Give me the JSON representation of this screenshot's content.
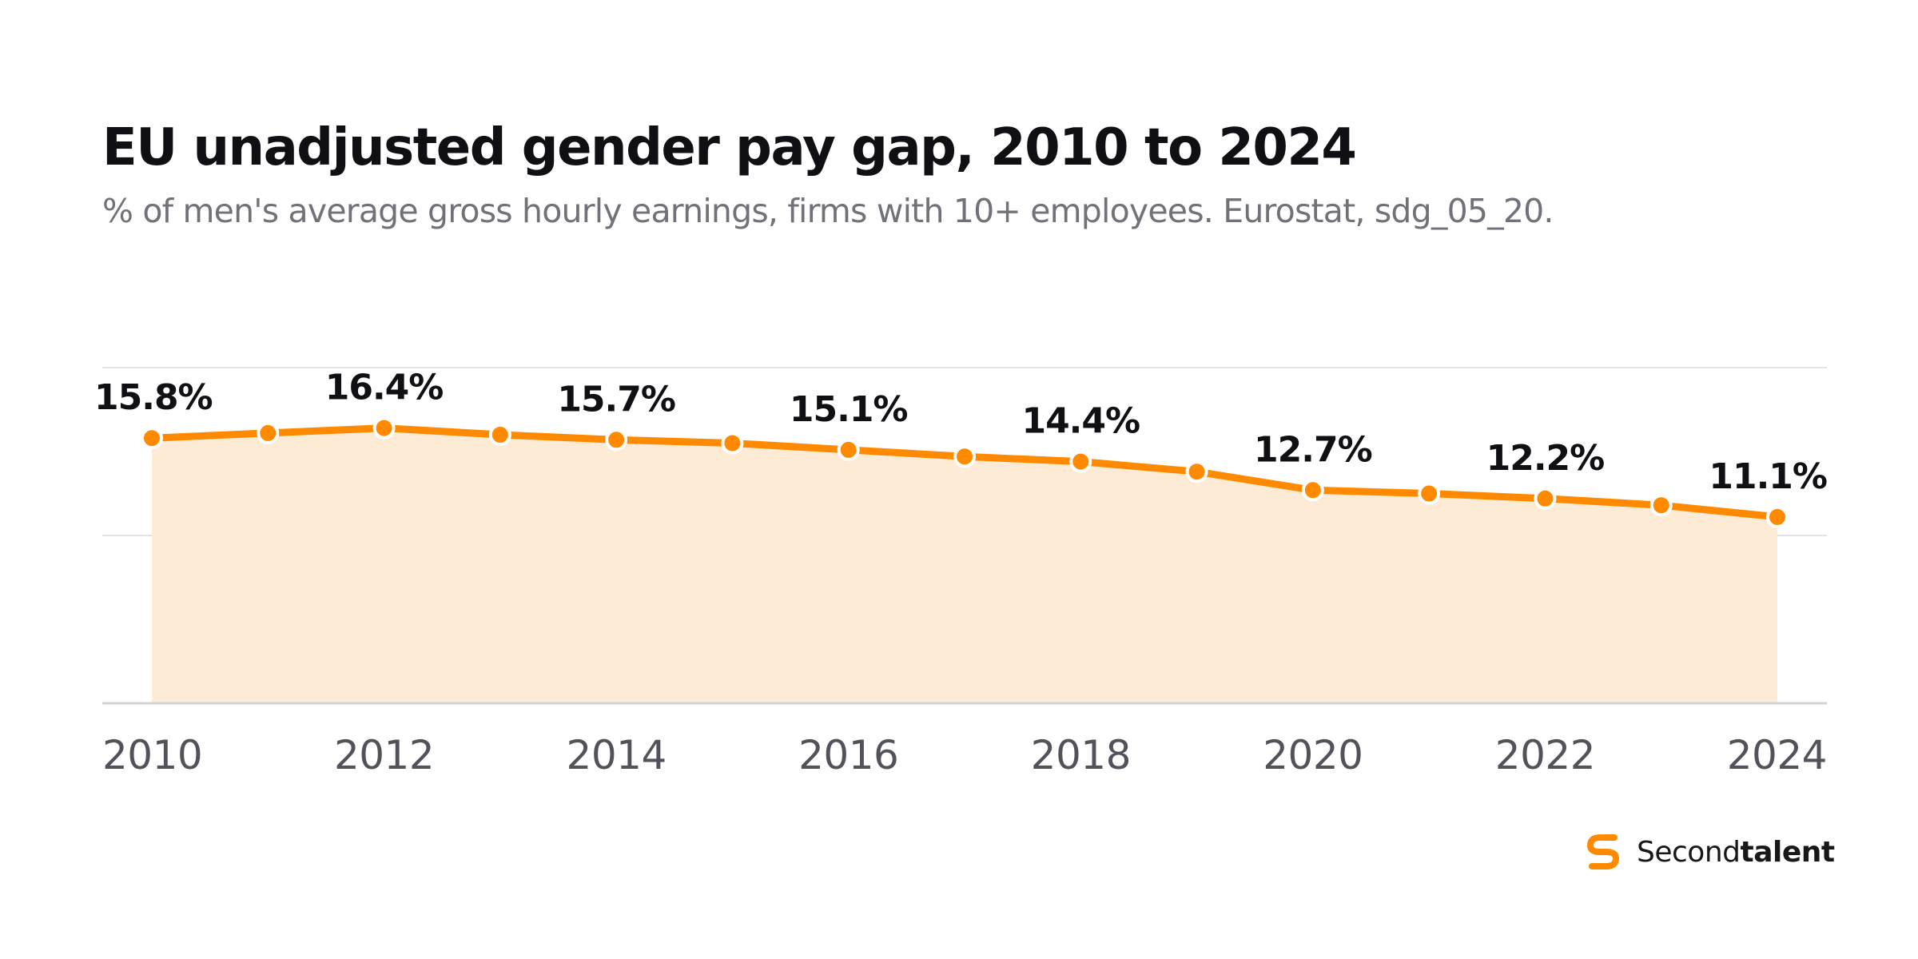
{
  "title": "EU unadjusted gender pay gap, 2010 to 2024",
  "subtitle": "% of men's average gross hourly earnings, firms with 10+ employees. Eurostat, sdg_05_20.",
  "brand": {
    "name_regular": "Second",
    "name_bold": "talent",
    "icon": "secondtalent-logo-icon"
  },
  "colors": {
    "line": "#FF8A00",
    "area": "#FDEBD6",
    "grid": "#E4E4E7",
    "baseline": "#D4D4D8",
    "tick_text": "#52525B",
    "label_text": "#0F0F14"
  },
  "chart_data": {
    "type": "area",
    "x": [
      2010,
      2011,
      2012,
      2013,
      2014,
      2015,
      2016,
      2017,
      2018,
      2019,
      2020,
      2021,
      2022,
      2023,
      2024
    ],
    "values": [
      15.8,
      16.1,
      16.4,
      16.0,
      15.7,
      15.5,
      15.1,
      14.7,
      14.4,
      13.8,
      12.7,
      12.5,
      12.2,
      11.8,
      11.1
    ],
    "data_labels": [
      {
        "x": 2010,
        "text": "15.8%"
      },
      {
        "x": 2012,
        "text": "16.4%"
      },
      {
        "x": 2014,
        "text": "15.7%"
      },
      {
        "x": 2016,
        "text": "15.1%"
      },
      {
        "x": 2018,
        "text": "14.4%"
      },
      {
        "x": 2020,
        "text": "12.7%"
      },
      {
        "x": 2022,
        "text": "12.2%"
      },
      {
        "x": 2024,
        "text": "11.1%"
      }
    ],
    "x_ticks": [
      "2010",
      "2012",
      "2014",
      "2016",
      "2018",
      "2020",
      "2022",
      "2024"
    ],
    "ylim": [
      0,
      20
    ],
    "grid": true,
    "legend": "none"
  }
}
